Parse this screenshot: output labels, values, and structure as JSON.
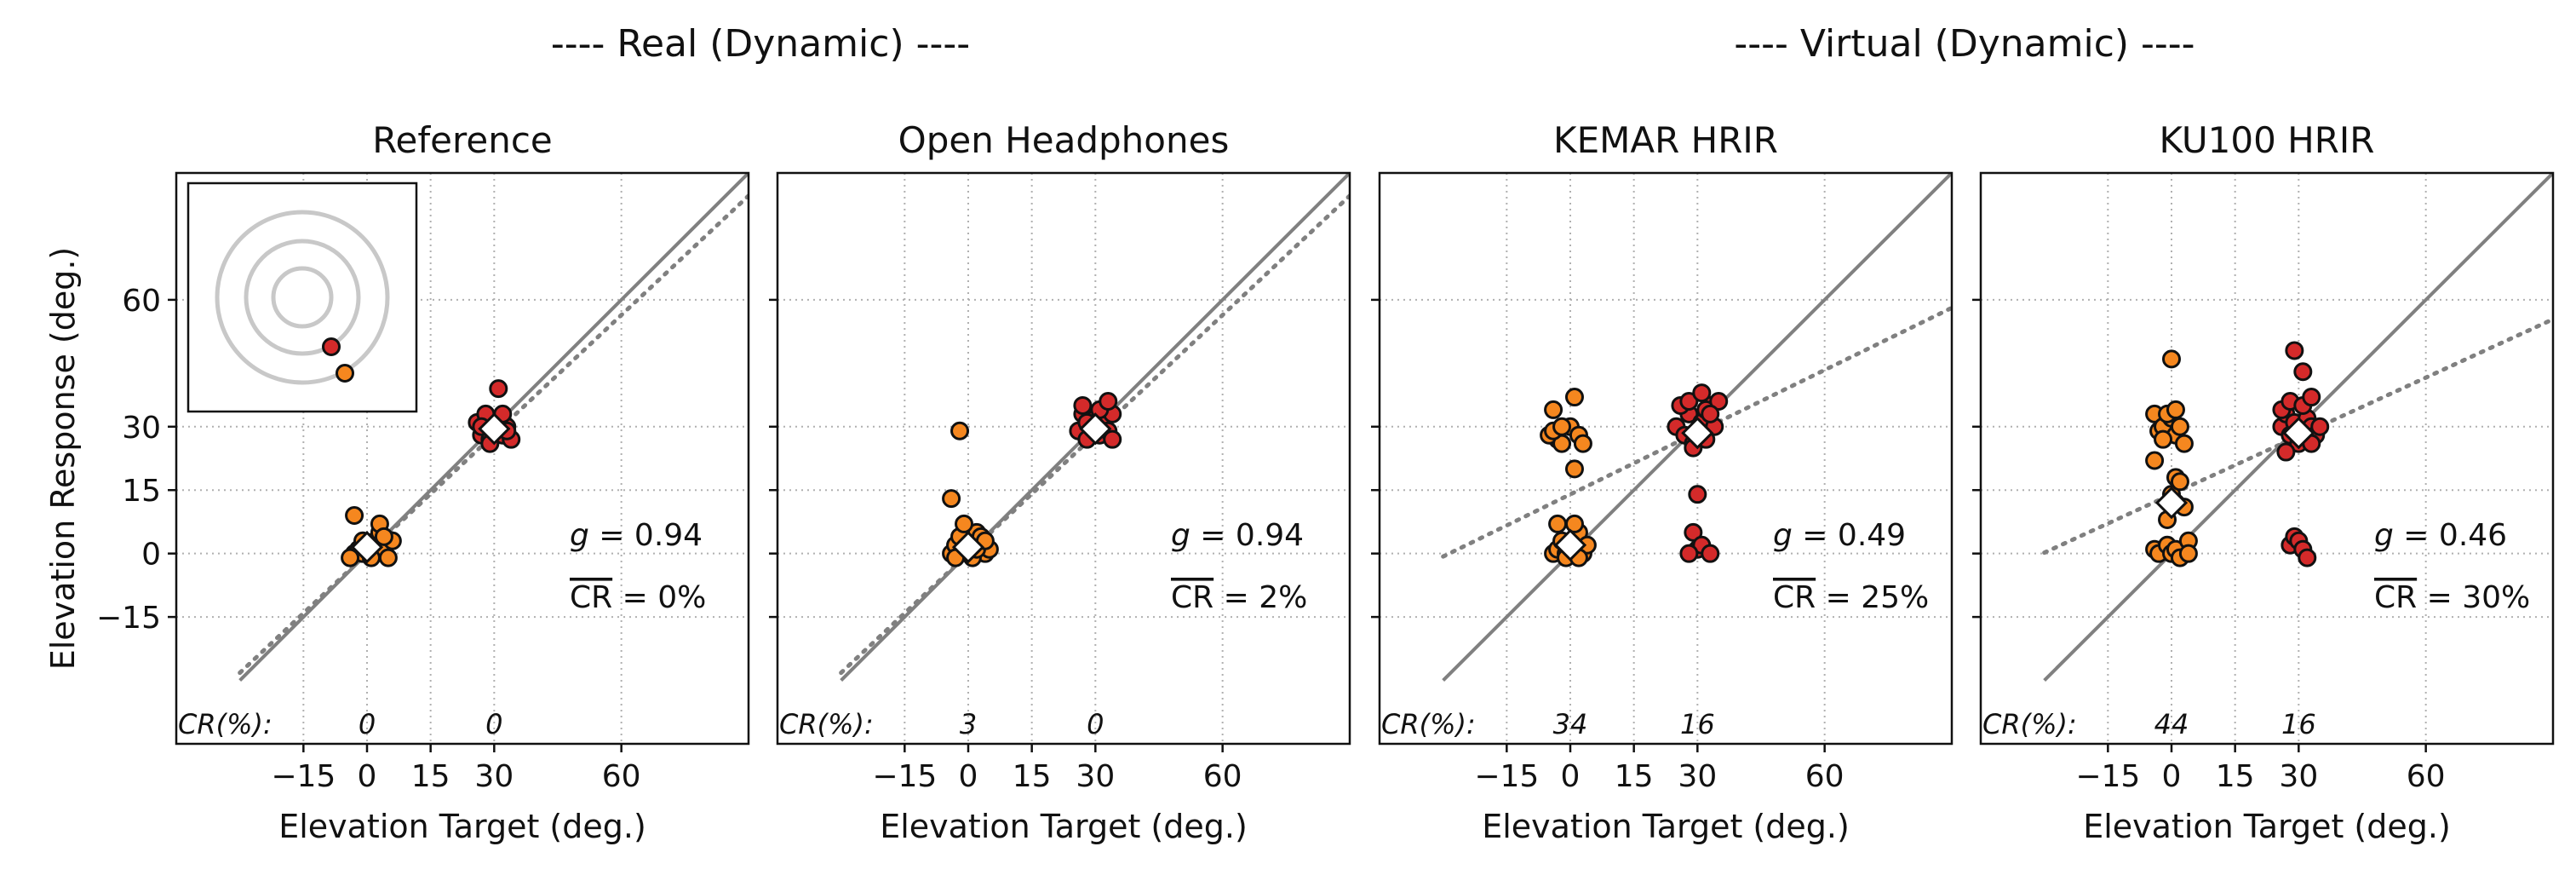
{
  "group_titles": [
    "---- Real (Dynamic) ----",
    "---- Virtual (Dynamic) ----"
  ],
  "colors": {
    "elevation_0": "#f5871f",
    "elevation_30": "#d42a2a",
    "marker_edge": "#111111",
    "mean_marker": "#ffffff",
    "identity_line": "#808080",
    "fit_line": "#808080",
    "grid": "#b0b0b0",
    "inset_rings": "#c8c8c8"
  },
  "chart_data": [
    {
      "type": "scatter",
      "title": "Reference",
      "xlabel": "Elevation Target (deg.)",
      "ylabel": "Elevation Response (deg.)",
      "xlim": [
        -45,
        90
      ],
      "ylim": [
        -45,
        90
      ],
      "xticks": [
        -15,
        0,
        15,
        30,
        60
      ],
      "yticks": [
        -15,
        0,
        15,
        30,
        60
      ],
      "grid": true,
      "inset": true,
      "gain_label": "g = 0.94",
      "cr_label": "CR = 0%",
      "cr_row_label": "CR(%):",
      "cr_by_target": [
        {
          "x": 0,
          "value": "0"
        },
        {
          "x": 30,
          "value": "0"
        }
      ],
      "fit_line": {
        "slope": 0.94,
        "intercept": 0
      },
      "series": [
        {
          "target": 0,
          "color_key": "elevation_0",
          "points": [
            [
              -3,
              0
            ],
            [
              -2,
              1
            ],
            [
              -1,
              0
            ],
            [
              0,
              2
            ],
            [
              1,
              0
            ],
            [
              2,
              3
            ],
            [
              3,
              5
            ],
            [
              4,
              1
            ],
            [
              5,
              -1
            ],
            [
              6,
              3
            ],
            [
              3,
              7
            ],
            [
              -3,
              9
            ],
            [
              -4,
              -1
            ],
            [
              1,
              -1
            ],
            [
              -1,
              3
            ],
            [
              4,
              4
            ]
          ]
        },
        {
          "target": 30,
          "color_key": "elevation_30",
          "points": [
            [
              27,
              28
            ],
            [
              28,
              30
            ],
            [
              29,
              27
            ],
            [
              30,
              29
            ],
            [
              31,
              30
            ],
            [
              32,
              28
            ],
            [
              33,
              30
            ],
            [
              34,
              27
            ],
            [
              26,
              31
            ],
            [
              28,
              33
            ],
            [
              32,
              33
            ],
            [
              31,
              39
            ],
            [
              29,
              26
            ],
            [
              33,
              29
            ],
            [
              27,
              30
            ]
          ]
        }
      ],
      "means": [
        [
          0,
          1.5
        ],
        [
          30,
          29.5
        ]
      ]
    },
    {
      "type": "scatter",
      "title": "Open Headphones",
      "xlabel": "Elevation Target (deg.)",
      "ylabel": "",
      "xlim": [
        -45,
        90
      ],
      "ylim": [
        -45,
        90
      ],
      "xticks": [
        -15,
        0,
        15,
        30,
        60
      ],
      "yticks": [
        -15,
        0,
        15,
        30,
        60
      ],
      "grid": true,
      "inset": false,
      "gain_label": "g = 0.94",
      "cr_label": "CR = 2%",
      "cr_row_label": "CR(%):",
      "cr_by_target": [
        {
          "x": 0,
          "value": "3"
        },
        {
          "x": 30,
          "value": "0"
        }
      ],
      "fit_line": {
        "slope": 0.94,
        "intercept": 0
      },
      "series": [
        {
          "target": 0,
          "color_key": "elevation_0",
          "points": [
            [
              -4,
              0
            ],
            [
              -3,
              2
            ],
            [
              -2,
              4
            ],
            [
              -1,
              1
            ],
            [
              0,
              0
            ],
            [
              1,
              3
            ],
            [
              2,
              5
            ],
            [
              3,
              2
            ],
            [
              4,
              0
            ],
            [
              5,
              1
            ],
            [
              -1,
              7
            ],
            [
              -4,
              13
            ],
            [
              -2,
              29
            ],
            [
              1,
              -1
            ],
            [
              3,
              4
            ],
            [
              -3,
              -1
            ],
            [
              2,
              1
            ],
            [
              4,
              3
            ]
          ]
        },
        {
          "target": 30,
          "color_key": "elevation_30",
          "points": [
            [
              26,
              29
            ],
            [
              27,
              33
            ],
            [
              28,
              27
            ],
            [
              29,
              30
            ],
            [
              30,
              32
            ],
            [
              31,
              28
            ],
            [
              32,
              31
            ],
            [
              33,
              29
            ],
            [
              34,
              33
            ],
            [
              27,
              35
            ],
            [
              31,
              34
            ],
            [
              33,
              36
            ],
            [
              28,
              31
            ],
            [
              34,
              27
            ]
          ]
        }
      ],
      "means": [
        [
          0,
          1.5
        ],
        [
          30,
          29.5
        ]
      ]
    },
    {
      "type": "scatter",
      "title": "KEMAR HRIR",
      "xlabel": "Elevation Target (deg.)",
      "ylabel": "",
      "xlim": [
        -45,
        90
      ],
      "ylim": [
        -45,
        90
      ],
      "xticks": [
        -15,
        0,
        15,
        30,
        60
      ],
      "yticks": [
        -15,
        0,
        15,
        30,
        60
      ],
      "grid": true,
      "inset": false,
      "gain_label": "g = 0.49",
      "cr_label": "CR = 25%",
      "cr_row_label": "CR(%):",
      "cr_by_target": [
        {
          "x": 0,
          "value": "34"
        },
        {
          "x": 30,
          "value": "16"
        }
      ],
      "fit_line": {
        "slope": 0.49,
        "intercept": 14
      },
      "series": [
        {
          "target": 0,
          "color_key": "elevation_0",
          "points": [
            [
              -4,
              0
            ],
            [
              -3,
              1
            ],
            [
              -2,
              3
            ],
            [
              -1,
              0
            ],
            [
              0,
              2
            ],
            [
              1,
              1
            ],
            [
              2,
              5
            ],
            [
              3,
              0
            ],
            [
              4,
              2
            ],
            [
              -3,
              7
            ],
            [
              1,
              7
            ],
            [
              -1,
              -1
            ],
            [
              2,
              -1
            ],
            [
              -3,
              27
            ],
            [
              -5,
              28
            ],
            [
              -2,
              26
            ],
            [
              0,
              30
            ],
            [
              -4,
              29
            ],
            [
              2,
              28
            ],
            [
              3,
              26
            ],
            [
              -4,
              34
            ],
            [
              1,
              37
            ],
            [
              -2,
              30
            ],
            [
              1,
              20
            ]
          ]
        },
        {
          "target": 30,
          "color_key": "elevation_30",
          "points": [
            [
              25,
              30
            ],
            [
              27,
              28
            ],
            [
              28,
              33
            ],
            [
              29,
              26
            ],
            [
              30,
              29
            ],
            [
              31,
              31
            ],
            [
              32,
              27
            ],
            [
              33,
              35
            ],
            [
              34,
              30
            ],
            [
              26,
              35
            ],
            [
              28,
              36
            ],
            [
              32,
              34
            ],
            [
              35,
              36
            ],
            [
              31,
              38
            ],
            [
              29,
              25
            ],
            [
              33,
              33
            ],
            [
              30,
              14
            ],
            [
              29,
              5
            ],
            [
              30,
              1
            ],
            [
              31,
              2
            ],
            [
              28,
              0
            ],
            [
              33,
              0
            ]
          ]
        }
      ],
      "means": [
        [
          0,
          2
        ],
        [
          30,
          28.5
        ]
      ]
    },
    {
      "type": "scatter",
      "title": "KU100 HRIR",
      "xlabel": "Elevation Target (deg.)",
      "ylabel": "",
      "xlim": [
        -45,
        90
      ],
      "ylim": [
        -45,
        90
      ],
      "xticks": [
        -15,
        0,
        15,
        30,
        60
      ],
      "yticks": [
        -15,
        0,
        15,
        30,
        60
      ],
      "grid": true,
      "inset": false,
      "gain_label": "g = 0.46",
      "cr_label": "CR = 30%",
      "cr_row_label": "CR(%):",
      "cr_by_target": [
        {
          "x": 0,
          "value": "44"
        },
        {
          "x": 30,
          "value": "16"
        }
      ],
      "fit_line": {
        "slope": 0.46,
        "intercept": 14
      },
      "series": [
        {
          "target": 0,
          "color_key": "elevation_0",
          "points": [
            [
              -4,
              1
            ],
            [
              -3,
              0
            ],
            [
              -1,
              2
            ],
            [
              0,
              0
            ],
            [
              1,
              1
            ],
            [
              2,
              -1
            ],
            [
              4,
              3
            ],
            [
              -3,
              29
            ],
            [
              -4,
              33
            ],
            [
              -2,
              30
            ],
            [
              0,
              32
            ],
            [
              1,
              28
            ],
            [
              3,
              26
            ],
            [
              -2,
              27
            ],
            [
              2,
              30
            ],
            [
              1,
              18
            ],
            [
              0,
              14
            ],
            [
              -1,
              8
            ],
            [
              1,
              12
            ],
            [
              3,
              11
            ],
            [
              0,
              46
            ],
            [
              -4,
              22
            ],
            [
              2,
              17
            ],
            [
              -1,
              33
            ],
            [
              1,
              34
            ],
            [
              4,
              0
            ]
          ]
        },
        {
          "target": 30,
          "color_key": "elevation_30",
          "points": [
            [
              26,
              30
            ],
            [
              27,
              33
            ],
            [
              28,
              28
            ],
            [
              29,
              31
            ],
            [
              30,
              26
            ],
            [
              31,
              29
            ],
            [
              32,
              32
            ],
            [
              33,
              30
            ],
            [
              34,
              28
            ],
            [
              26,
              34
            ],
            [
              28,
              36
            ],
            [
              31,
              35
            ],
            [
              33,
              37
            ],
            [
              35,
              30
            ],
            [
              29,
              48
            ],
            [
              31,
              43
            ],
            [
              27,
              24
            ],
            [
              33,
              26
            ],
            [
              28,
              2
            ],
            [
              29,
              4
            ],
            [
              30,
              3
            ],
            [
              31,
              1
            ],
            [
              32,
              -1
            ]
          ]
        }
      ],
      "means": [
        [
          0,
          12
        ],
        [
          30,
          28.5
        ]
      ]
    }
  ]
}
